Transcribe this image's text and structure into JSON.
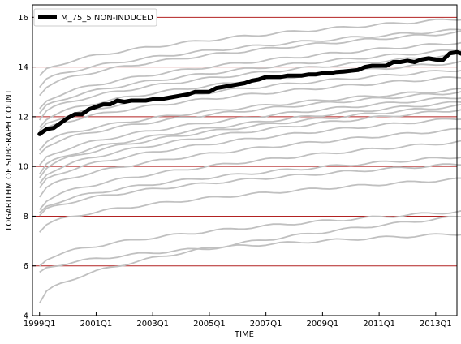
{
  "chart_data": {
    "type": "line",
    "title": "",
    "xlabel": "TIME",
    "ylabel": "LOGARITHM OF SUBGRAPH COUNT",
    "ylim": [
      4,
      16.5
    ],
    "yticks": [
      4,
      6,
      8,
      10,
      12,
      14,
      16
    ],
    "xlim": [
      -1,
      59
    ],
    "x_tick_positions": [
      0,
      8,
      16,
      24,
      32,
      40,
      48,
      56
    ],
    "x_tick_labels": [
      "1999Q1",
      "2001Q1",
      "2003Q1",
      "2005Q1",
      "2007Q1",
      "2009Q1",
      "2011Q1",
      "2013Q1"
    ],
    "grid": "horizontal",
    "grid_color": "#b22222",
    "legend": {
      "position": "top-left",
      "entries": [
        "M_75_5 NON-INDUCED"
      ]
    },
    "highlight": {
      "name": "M_75_5 NON-INDUCED",
      "color": "#000000",
      "values": [
        11.3,
        11.5,
        11.55,
        11.75,
        11.95,
        12.1,
        12.1,
        12.3,
        12.4,
        12.5,
        12.5,
        12.65,
        12.6,
        12.65,
        12.65,
        12.65,
        12.7,
        12.7,
        12.75,
        12.8,
        12.85,
        12.9,
        13.0,
        13.0,
        13.0,
        13.15,
        13.2,
        13.25,
        13.3,
        13.35,
        13.45,
        13.5,
        13.6,
        13.6,
        13.6,
        13.65,
        13.65,
        13.65,
        13.7,
        13.7,
        13.75,
        13.75,
        13.8,
        13.82,
        13.85,
        13.88,
        14.0,
        14.05,
        14.05,
        14.05,
        14.2,
        14.2,
        14.25,
        14.2,
        14.3,
        14.35,
        14.3,
        14.28,
        14.55,
        14.6,
        14.5
      ]
    },
    "background_series": {
      "color": "#c0c0c0",
      "start": [
        4.5,
        5.7,
        6.0,
        7.4,
        8.0,
        8.1,
        8.3,
        8.8,
        9.1,
        9.3,
        9.6,
        9.7,
        10.0,
        10.5,
        10.7,
        11.2,
        11.4,
        11.6,
        11.9,
        12.1,
        12.3,
        12.9,
        13.2,
        13.6
      ],
      "end": [
        8.0,
        7.3,
        8.2,
        9.5,
        10.1,
        10.4,
        11.0,
        11.5,
        11.95,
        12.3,
        12.45,
        12.6,
        12.8,
        13.0,
        13.1,
        13.6,
        13.9,
        14.2,
        14.5,
        14.7,
        15.0,
        15.4,
        15.5,
        15.95
      ]
    }
  }
}
